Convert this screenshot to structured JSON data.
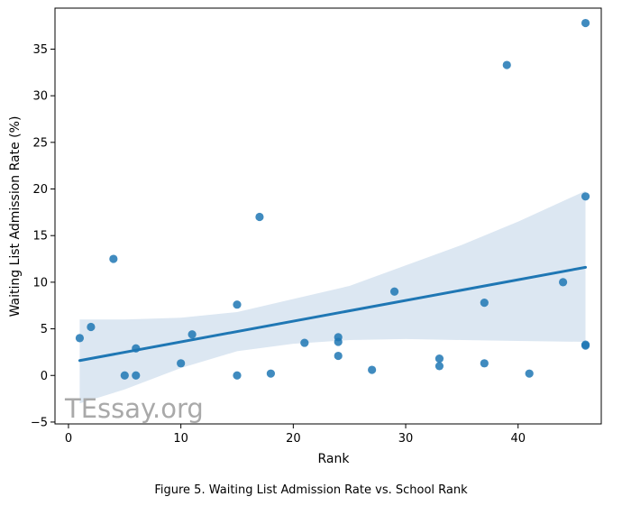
{
  "caption": "Figure 5. Waiting List Admission Rate vs. School Rank",
  "watermark": "TEssay.org",
  "chart_data": {
    "type": "scatter",
    "xlabel": "Rank",
    "ylabel": "Waiting List Admission Rate (%)",
    "xlim": [
      -1.2,
      47.4
    ],
    "ylim": [
      -5.2,
      39.4
    ],
    "xticks": [
      0,
      10,
      20,
      30,
      40
    ],
    "yticks": [
      -5,
      0,
      5,
      10,
      15,
      20,
      25,
      30,
      35
    ],
    "grid": false,
    "point_color": "#1f77b4",
    "points": [
      {
        "x": 1,
        "y": 4.0
      },
      {
        "x": 2,
        "y": 5.2
      },
      {
        "x": 4,
        "y": 12.5
      },
      {
        "x": 5,
        "y": 0.0
      },
      {
        "x": 6,
        "y": 0.0
      },
      {
        "x": 6,
        "y": 2.9
      },
      {
        "x": 10,
        "y": 1.3
      },
      {
        "x": 11,
        "y": 4.4
      },
      {
        "x": 15,
        "y": 7.6
      },
      {
        "x": 15,
        "y": 0.0
      },
      {
        "x": 17,
        "y": 17.0
      },
      {
        "x": 18,
        "y": 0.2
      },
      {
        "x": 21,
        "y": 3.5
      },
      {
        "x": 24,
        "y": 4.1
      },
      {
        "x": 24,
        "y": 3.6
      },
      {
        "x": 24,
        "y": 2.1
      },
      {
        "x": 27,
        "y": 0.6
      },
      {
        "x": 29,
        "y": 9.0
      },
      {
        "x": 33,
        "y": 1.8
      },
      {
        "x": 33,
        "y": 1.0
      },
      {
        "x": 37,
        "y": 7.8
      },
      {
        "x": 37,
        "y": 1.3
      },
      {
        "x": 39,
        "y": 33.3
      },
      {
        "x": 41,
        "y": 0.2
      },
      {
        "x": 44,
        "y": 10.0
      },
      {
        "x": 46,
        "y": 37.8
      },
      {
        "x": 46,
        "y": 19.2
      },
      {
        "x": 46,
        "y": 3.2
      },
      {
        "x": 46,
        "y": 3.3
      }
    ],
    "regression": {
      "x": [
        1,
        46
      ],
      "y": [
        1.6,
        11.6
      ],
      "color": "#1f77b4"
    },
    "confidence_band": {
      "color": "#dce7f2",
      "x": [
        1,
        5,
        10,
        15,
        20,
        25,
        30,
        35,
        40,
        46
      ],
      "upper": [
        6.0,
        6.0,
        6.2,
        6.8,
        8.2,
        9.6,
        11.8,
        14.0,
        16.5,
        19.8
      ],
      "lower": [
        -3.0,
        -1.5,
        0.8,
        2.6,
        3.4,
        3.8,
        3.9,
        3.8,
        3.7,
        3.6
      ]
    }
  }
}
